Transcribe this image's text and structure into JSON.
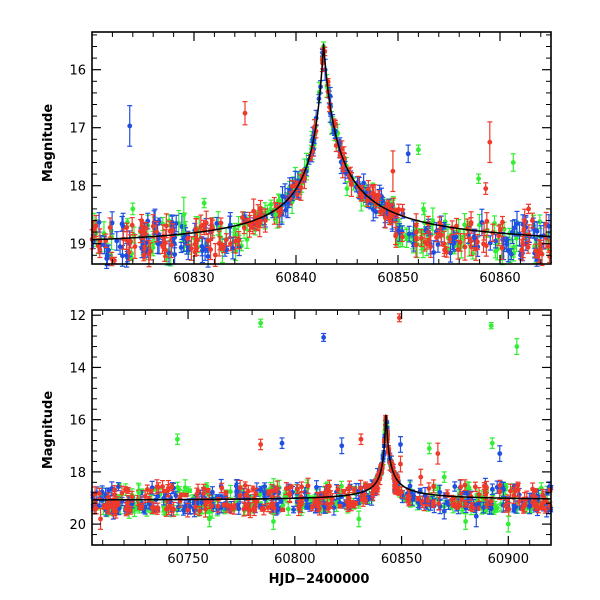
{
  "colors": {
    "blue": "#1f4fe0",
    "green": "#33ee33",
    "red": "#ee3a2a",
    "model": "#000000"
  },
  "chart_data": [
    {
      "type": "scatter",
      "title": "",
      "xlabel": "",
      "ylabel": "Magnitude",
      "xlim": [
        60820,
        60865
      ],
      "ylim": [
        19.35,
        15.35
      ],
      "y_inverted": true,
      "xticks": [
        60830,
        60840,
        60850,
        60860
      ],
      "xtick_labels": [
        "60830",
        "60840",
        "60850",
        "60860"
      ],
      "yticks": [
        16,
        17,
        18,
        19
      ],
      "ytick_labels": [
        "16",
        "17",
        "18",
        "19"
      ],
      "model": {
        "baseline": 19.1,
        "peak_mag": 15.55,
        "t0": 60842.7,
        "rise_tau": 1.8,
        "decay_tau": 2.4
      },
      "scatter_band": [
        18.6,
        19.3
      ],
      "series": [
        {
          "color": "blue",
          "outliers": [
            [
              60823.7,
              16.97,
              0.35
            ],
            [
              60851.0,
              17.45,
              0.15
            ],
            [
              60839.2,
              18.3,
              0.25
            ],
            [
              60853.5,
              19.15,
              0.2
            ],
            [
              60857.5,
              18.9,
              0.15
            ],
            [
              60864.8,
              18.7,
              0.2
            ]
          ]
        },
        {
          "color": "green",
          "outliers": [
            [
              60852.0,
              17.38,
              0.08
            ],
            [
              60857.9,
              17.88,
              0.08
            ],
            [
              60861.3,
              17.6,
              0.15
            ],
            [
              60829.0,
              18.5,
              0.3
            ],
            [
              60831.0,
              18.3,
              0.08
            ],
            [
              60838.0,
              18.5,
              0.1
            ],
            [
              60845.0,
              18.05,
              0.12
            ],
            [
              60824.0,
              18.4,
              0.1
            ],
            [
              60834.0,
              18.75,
              0.1
            ],
            [
              60852.5,
              18.4,
              0.1
            ]
          ]
        },
        {
          "color": "red",
          "outliers": [
            [
              60835.0,
              16.75,
              0.2
            ],
            [
              60849.5,
              17.75,
              0.35
            ],
            [
              60859.0,
              17.25,
              0.35
            ],
            [
              60858.6,
              18.05,
              0.1
            ],
            [
              60862.8,
              18.4,
              0.08
            ],
            [
              60826.0,
              18.7,
              0.2
            ],
            [
              60837.0,
              18.6,
              0.2
            ]
          ]
        }
      ]
    },
    {
      "type": "scatter",
      "title": "",
      "xlabel": "HJD−2400000",
      "ylabel": "Magnitude",
      "xlim": [
        60705,
        60920
      ],
      "ylim": [
        20.8,
        11.8
      ],
      "y_inverted": true,
      "xticks": [
        60750,
        60800,
        60850,
        60900
      ],
      "xtick_labels": [
        "60750",
        "60800",
        "60850",
        "60900"
      ],
      "yticks": [
        12,
        14,
        16,
        18,
        20
      ],
      "ytick_labels": [
        "12",
        "14",
        "16",
        "18",
        "20"
      ],
      "model": {
        "baseline": 19.1,
        "peak_mag": 15.55,
        "t0": 60842.7,
        "rise_tau": 1.8,
        "decay_tau": 2.4
      },
      "scatter_band": [
        18.5,
        19.9
      ],
      "series": [
        {
          "color": "blue",
          "outliers": [
            [
              60813.5,
              12.85,
              0.15
            ],
            [
              60794.0,
              16.9,
              0.2
            ],
            [
              60822.0,
              17.0,
              0.3
            ],
            [
              60849.5,
              16.95,
              0.3
            ],
            [
              60896.0,
              17.3,
              0.3
            ],
            [
              60861.0,
              18.9,
              0.3
            ],
            [
              60870.0,
              19.5,
              0.3
            ],
            [
              60885.0,
              19.7,
              0.4
            ],
            [
              60910.0,
              19.3,
              0.3
            ]
          ]
        },
        {
          "color": "green",
          "outliers": [
            [
              60784.0,
              12.3,
              0.15
            ],
            [
              60892.0,
              12.4,
              0.12
            ],
            [
              60904.0,
              13.2,
              0.3
            ],
            [
              60745.0,
              16.75,
              0.2
            ],
            [
              60863.0,
              17.1,
              0.2
            ],
            [
              60892.5,
              16.9,
              0.2
            ],
            [
              60870.0,
              18.2,
              0.2
            ],
            [
              60880.0,
              19.9,
              0.3
            ],
            [
              60727.0,
              18.8,
              0.3
            ],
            [
              60760.0,
              19.8,
              0.3
            ],
            [
              60790.0,
              19.9,
              0.3
            ],
            [
              60830.0,
              19.8,
              0.3
            ],
            [
              60900.0,
              20.0,
              0.3
            ]
          ]
        },
        {
          "color": "red",
          "outliers": [
            [
              60849.0,
              12.1,
              0.15
            ],
            [
              60784.0,
              16.95,
              0.2
            ],
            [
              60831.0,
              16.75,
              0.2
            ],
            [
              60867.0,
              17.3,
              0.4
            ],
            [
              60709.0,
              19.8,
              0.4
            ],
            [
              60716.0,
              19.35,
              0.3
            ],
            [
              60849.5,
              17.7,
              0.3
            ],
            [
              60859.0,
              18.2,
              0.3
            ]
          ]
        }
      ]
    }
  ]
}
